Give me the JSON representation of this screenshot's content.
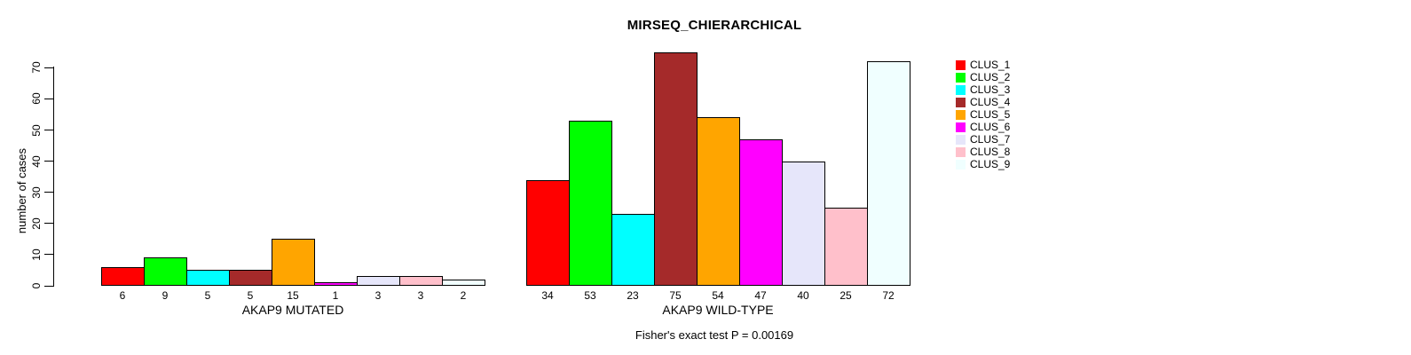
{
  "chart_data": {
    "type": "bar",
    "title": "MIRSEQ_CHIERARCHICAL",
    "ylabel": "number of cases",
    "ylim": [
      0,
      70
    ],
    "yticks": [
      0,
      10,
      20,
      30,
      40,
      50,
      60,
      70
    ],
    "grid": false,
    "legend_position": "right",
    "clusters": [
      "CLUS_1",
      "CLUS_2",
      "CLUS_3",
      "CLUS_4",
      "CLUS_5",
      "CLUS_6",
      "CLUS_7",
      "CLUS_8",
      "CLUS_9"
    ],
    "colors": [
      "#FF0000",
      "#00FF00",
      "#00FFFF",
      "#A52A2A",
      "#FFA500",
      "#FF00FF",
      "#E6E6FA",
      "#FFC0CB",
      "#F0FFFF"
    ],
    "bar_border_color": "#000000",
    "groups": [
      {
        "label": "AKAP9 MUTATED",
        "values": [
          6,
          9,
          5,
          5,
          15,
          1,
          3,
          3,
          2
        ]
      },
      {
        "label": "AKAP9 WILD-TYPE",
        "values": [
          34,
          53,
          23,
          75,
          54,
          47,
          40,
          25,
          72
        ]
      }
    ],
    "annotation": "Fisher's exact test P = 0.00169"
  }
}
